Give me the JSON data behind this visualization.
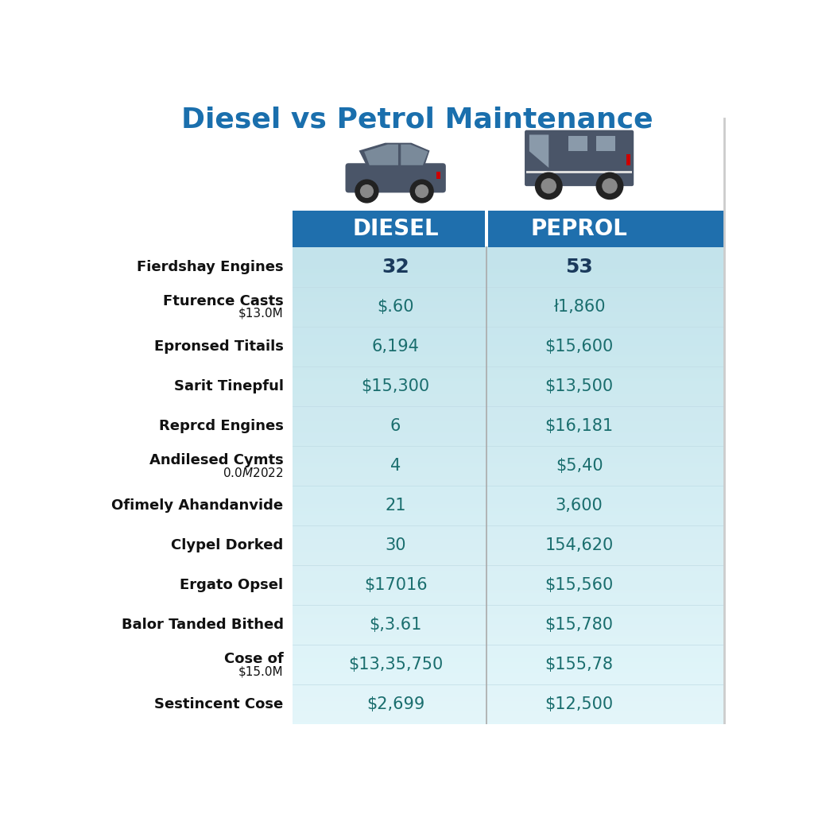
{
  "title": "Diesel vs Petrol Maintenance",
  "col1_header": "DIESEL",
  "col2_header": "PEPROL",
  "header_bg": "#1f6fad",
  "header_text_color": "#ffffff",
  "table_bg": "#cce8f0",
  "label_color": "#111111",
  "value_color_teal": "#1a6e6e",
  "value_color_dark": "#1a3a5c",
  "divider_color": "#999999",
  "rows": [
    {
      "label": "Fierdshay Engines",
      "label2": "",
      "diesel": "32",
      "petrol": "53",
      "bold": true,
      "color": "dark"
    },
    {
      "label": "Fturence Casts",
      "label2": "$13.0M",
      "diesel": "$.60",
      "petrol": "ł1,860",
      "bold": false,
      "color": "teal"
    },
    {
      "label": "Epronsed Titails",
      "label2": "",
      "diesel": "6,194",
      "petrol": "$15,600",
      "bold": false,
      "color": "teal"
    },
    {
      "label": "Sarit Tinepful",
      "label2": "",
      "diesel": "$15,300",
      "petrol": "$13,500",
      "bold": false,
      "color": "teal"
    },
    {
      "label": "Reprcd Engines",
      "label2": "",
      "diesel": "6",
      "petrol": "$16,181",
      "bold": false,
      "color": "teal"
    },
    {
      "label": "Andilesed Cymts",
      "label2": "$0.0M $2022",
      "diesel": "4",
      "petrol": "$5,40",
      "bold": false,
      "color": "teal"
    },
    {
      "label": "Ofimely Ahandanvide",
      "label2": "",
      "diesel": "21",
      "petrol": "3,600",
      "bold": false,
      "color": "teal"
    },
    {
      "label": "Clypel Dorked",
      "label2": "",
      "diesel": "30",
      "petrol": "154,620",
      "bold": false,
      "color": "teal"
    },
    {
      "label": "Ergato Opsel",
      "label2": "",
      "diesel": "$17016",
      "petrol": "$15,560",
      "bold": false,
      "color": "teal"
    },
    {
      "label": "Balor Tanded Bithed",
      "label2": "",
      "diesel": "$,3.61",
      "petrol": "$15,780",
      "bold": false,
      "color": "teal"
    },
    {
      "label": "Cose of",
      "label2": "$15.0M",
      "diesel": "$13,35,750",
      "petrol": "$155,78",
      "bold": false,
      "color": "teal"
    },
    {
      "label": "Sestincent Cose",
      "label2": "",
      "diesel": "$2,699",
      "petrol": "$12,500",
      "bold": false,
      "color": "teal"
    }
  ],
  "fig_width": 10.24,
  "fig_height": 10.24,
  "dpi": 100
}
